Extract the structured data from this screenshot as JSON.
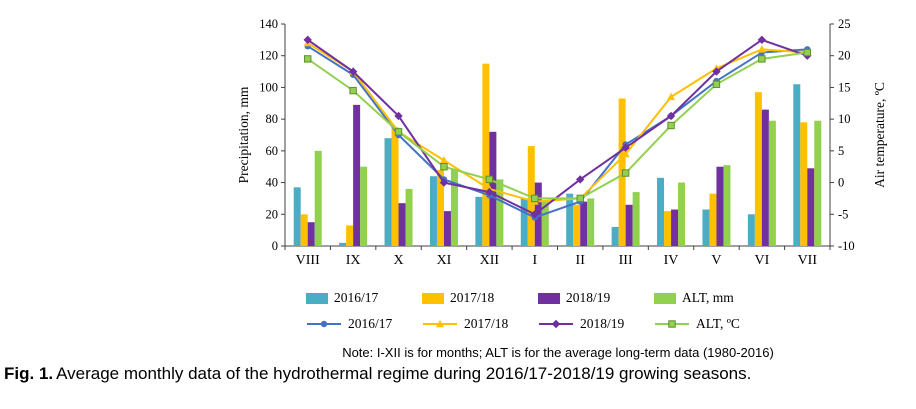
{
  "note": "Note: I-XII is for months; ALT is for the average long-term data (1980-2016)",
  "caption": {
    "label": "Fig. 1.",
    "text": "Average monthly data of the hydrothermal regime during 2016/17-2018/19 growing seasons."
  },
  "chart_data": {
    "type": "combo-bar-line",
    "title": "",
    "categories": [
      "VIII",
      "IX",
      "X",
      "XI",
      "XII",
      "I",
      "II",
      "III",
      "IV",
      "V",
      "VI",
      "VII"
    ],
    "left_axis": {
      "label": "Precipitation, mm",
      "min": 0,
      "max": 140,
      "step": 20
    },
    "right_axis": {
      "label": "Air temperature, ºC",
      "min": -10,
      "max": 25,
      "step": 5
    },
    "grid": false,
    "legend_position": "bottom",
    "bar_series": [
      {
        "name": "2016/17",
        "color": "#4BACC6",
        "values": [
          37,
          2,
          68,
          44,
          31,
          30,
          33,
          12,
          43,
          23,
          20,
          102
        ]
      },
      {
        "name": "2017/18",
        "color": "#FFC000",
        "values": [
          20,
          13,
          75,
          48,
          115,
          63,
          26,
          93,
          22,
          33,
          97,
          78
        ]
      },
      {
        "name": "2018/19",
        "color": "#7030A0",
        "values": [
          15,
          89,
          27,
          22,
          72,
          40,
          28,
          26,
          23,
          50,
          86,
          49
        ]
      },
      {
        "name": "ALT, mm",
        "color": "#92D050",
        "values": [
          60,
          50,
          36,
          48,
          42,
          28,
          30,
          34,
          40,
          51,
          79,
          79
        ]
      }
    ],
    "line_series": [
      {
        "name": "2016/17",
        "color": "#4472C4",
        "marker": "circle",
        "values": [
          21.5,
          17,
          7.5,
          0.5,
          -2,
          -5.5,
          -3,
          6,
          10.5,
          16,
          20.5,
          21
        ]
      },
      {
        "name": "2017/18",
        "color": "#FFC000",
        "marker": "triangle",
        "values": [
          22,
          17.5,
          8,
          3.5,
          -1,
          -3,
          -2.5,
          4.5,
          13.5,
          18,
          21,
          20.5
        ]
      },
      {
        "name": "2018/19",
        "color": "#7030A0",
        "marker": "diamond",
        "values": [
          22.5,
          17.5,
          10.5,
          0,
          -1.5,
          -5,
          0.5,
          5.5,
          10.5,
          17.5,
          22.5,
          20
        ]
      },
      {
        "name": "ALT, ºC",
        "color": "#92D050",
        "marker": "square",
        "values": [
          19.5,
          14.5,
          8,
          2.5,
          0.5,
          -2.5,
          -2.5,
          1.5,
          9,
          15.5,
          19.5,
          20.5
        ]
      }
    ]
  }
}
